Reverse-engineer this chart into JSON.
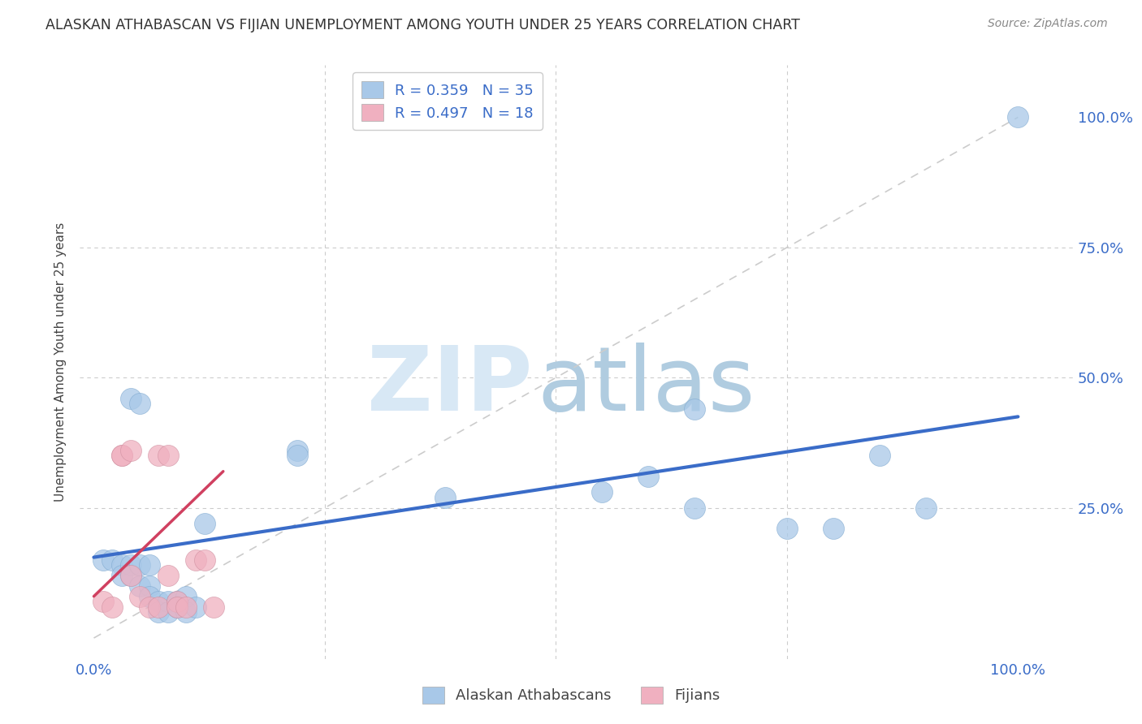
{
  "title": "ALASKAN ATHABASCAN VS FIJIAN UNEMPLOYMENT AMONG YOUTH UNDER 25 YEARS CORRELATION CHART",
  "source": "Source: ZipAtlas.com",
  "ylabel": "Unemployment Among Youth under 25 years",
  "legend_labels": [
    "Alaskan Athabascans",
    "Fijians"
  ],
  "r_athabascan": 0.359,
  "n_athabascan": 35,
  "r_fijian": 0.497,
  "n_fijian": 18,
  "athabascan_color": "#a8c8e8",
  "fijian_color": "#f0b0c0",
  "athabascan_line_color": "#3a6cc8",
  "fijian_line_color": "#d04060",
  "background_color": "#ffffff",
  "grid_color": "#cccccc",
  "athabascan_points_x": [
    0.01,
    0.02,
    0.03,
    0.03,
    0.04,
    0.04,
    0.05,
    0.05,
    0.06,
    0.06,
    0.06,
    0.07,
    0.07,
    0.08,
    0.08,
    0.09,
    0.09,
    0.1,
    0.1,
    0.11,
    0.04,
    0.05,
    0.22,
    0.22,
    0.38,
    0.55,
    0.6,
    0.65,
    0.75,
    0.8,
    0.85,
    0.9,
    1.0,
    0.65,
    0.12
  ],
  "athabascan_points_y": [
    0.15,
    0.15,
    0.14,
    0.12,
    0.14,
    0.12,
    0.14,
    0.1,
    0.14,
    0.1,
    0.08,
    0.07,
    0.05,
    0.07,
    0.05,
    0.07,
    0.06,
    0.08,
    0.05,
    0.06,
    0.46,
    0.45,
    0.36,
    0.35,
    0.27,
    0.28,
    0.31,
    0.44,
    0.21,
    0.21,
    0.35,
    0.25,
    1.0,
    0.25,
    0.22
  ],
  "fijian_points_x": [
    0.01,
    0.02,
    0.03,
    0.03,
    0.04,
    0.04,
    0.05,
    0.06,
    0.07,
    0.07,
    0.08,
    0.08,
    0.09,
    0.09,
    0.1,
    0.11,
    0.12,
    0.13
  ],
  "fijian_points_y": [
    0.07,
    0.06,
    0.35,
    0.35,
    0.36,
    0.12,
    0.08,
    0.06,
    0.06,
    0.35,
    0.35,
    0.12,
    0.07,
    0.06,
    0.06,
    0.15,
    0.15,
    0.06
  ],
  "blue_line_x0": 0.0,
  "blue_line_y0": 0.155,
  "blue_line_x1": 1.0,
  "blue_line_y1": 0.425,
  "pink_line_x0": 0.0,
  "pink_line_y0": 0.08,
  "pink_line_x1": 0.14,
  "pink_line_y1": 0.32,
  "diag_line_x0": 0.0,
  "diag_line_y0": 0.0,
  "diag_line_x1": 1.0,
  "diag_line_y1": 1.0,
  "xlim": [
    -0.015,
    1.06
  ],
  "ylim": [
    -0.04,
    1.1
  ],
  "xticks": [
    0.0,
    0.25,
    0.5,
    0.75,
    1.0
  ],
  "yticks": [
    0.0,
    0.25,
    0.5,
    0.75,
    1.0
  ],
  "watermark_zip_color": "#d8e8f5",
  "watermark_atlas_color": "#b0cce0"
}
